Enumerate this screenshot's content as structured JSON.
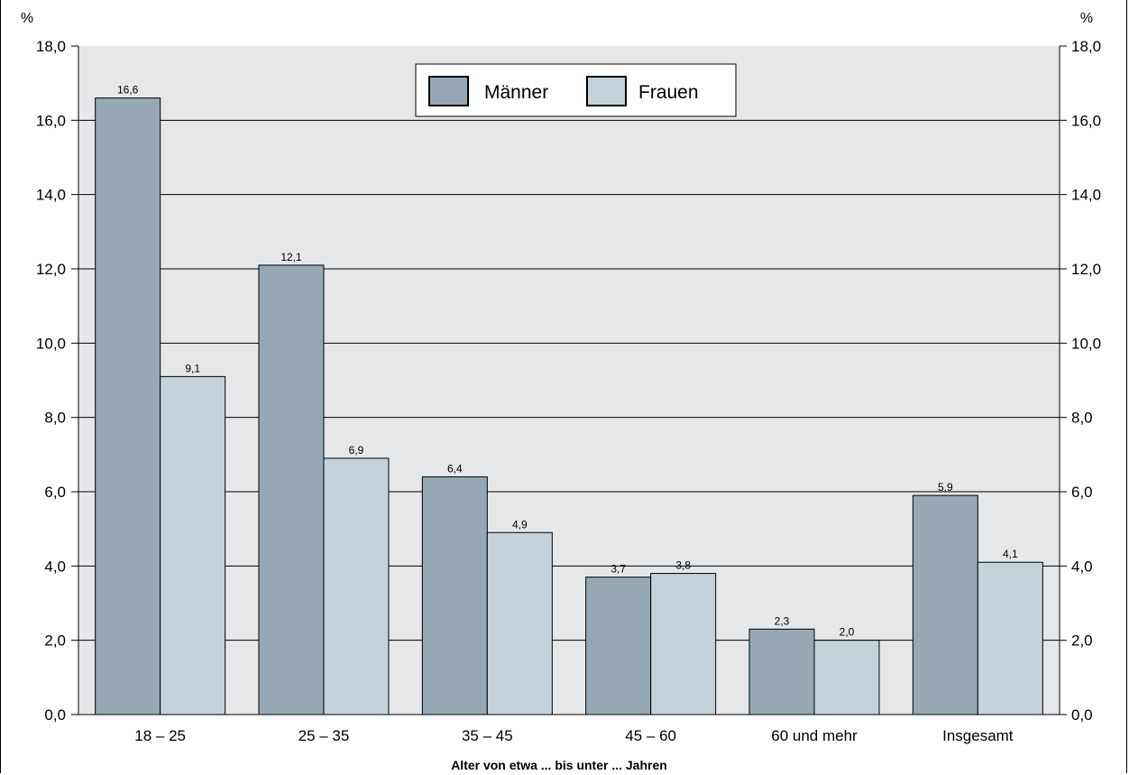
{
  "chart_data": {
    "type": "bar",
    "unit_left": "%",
    "unit_right": "%",
    "xlabel": "Alter von etwa ... bis unter ... Jahren",
    "ylim": [
      0,
      18
    ],
    "y_ticks": [
      "0,0",
      "2,0",
      "4,0",
      "6,0",
      "8,0",
      "10,0",
      "12,0",
      "14,0",
      "16,0",
      "18,0"
    ],
    "categories": [
      "18 – 25",
      "25 – 35",
      "35 – 45",
      "45 – 60",
      "60 und mehr",
      "Insgesamt"
    ],
    "series": [
      {
        "name": "Männer",
        "values": [
          16.6,
          12.1,
          6.4,
          3.7,
          2.3,
          5.9
        ],
        "labels": [
          "16,6",
          "12,1",
          "6,4",
          "3,7",
          "2,3",
          "5,9"
        ],
        "color": "#95a8b4"
      },
      {
        "name": "Frauen",
        "values": [
          9.1,
          6.9,
          4.9,
          3.8,
          2.0,
          4.1
        ],
        "labels": [
          "9,1",
          "6,9",
          "4,9",
          "3,8",
          "2,0",
          "4,1"
        ],
        "color": "#c5d2da"
      }
    ],
    "grid": true,
    "legend_position": "top-center",
    "plot_background": "#e6e7e9"
  }
}
